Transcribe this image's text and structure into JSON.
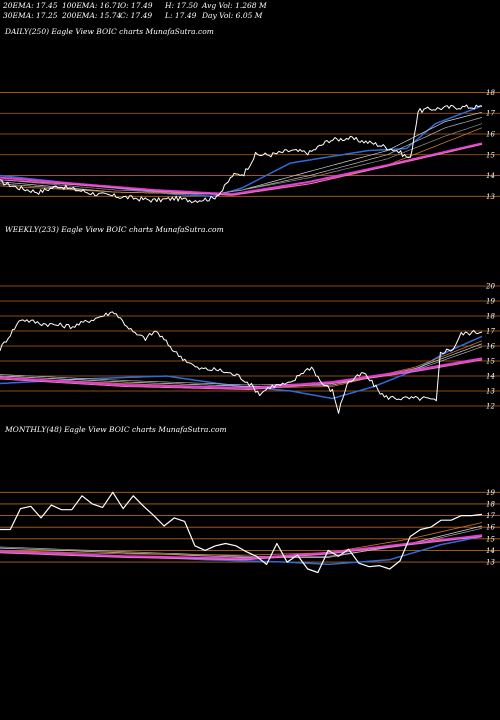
{
  "header": {
    "ema20": "20EMA: 17.45",
    "ema100": "100EMA: 16.71",
    "open": "O: 17.49",
    "high": "H: 17.50",
    "avgvol": "Avg Vol: 1.268  M",
    "ema30": "30EMA: 17.25",
    "ema200": "200EMA: 15.74",
    "close": "C: 17.49",
    "low": "L: 17.49",
    "dayvol": "Day Vol: 6.05 M"
  },
  "colors": {
    "background": "#000000",
    "price": "#ffffff",
    "gridline": "#b8651b",
    "ema_blue": "#2f6bd8",
    "ema_magenta": "#e040d0",
    "ema_pink": "#f070c8",
    "ema_orange": "#c8762a",
    "ema_white_gray": "#c8c8c8"
  },
  "chart_data": [
    {
      "type": "line",
      "label": "DAILY(250) Eagle  View  BOIC charts MunafaSutra.com",
      "y_ticks": [
        13,
        14,
        15,
        16,
        17,
        18
      ],
      "ylim": [
        12.1,
        18.6
      ],
      "x_count": 250,
      "grid": "horizontal",
      "series": [
        {
          "name": "price",
          "color": "#ffffff",
          "width": 1,
          "anchors": [
            [
              0,
              13.7
            ],
            [
              10,
              13.4
            ],
            [
              20,
              13.2
            ],
            [
              30,
              13.5
            ],
            [
              40,
              13.3
            ],
            [
              50,
              13.1
            ],
            [
              60,
              13.0
            ],
            [
              70,
              12.9
            ],
            [
              80,
              12.8
            ],
            [
              90,
              12.9
            ],
            [
              100,
              12.8
            ],
            [
              110,
              12.9
            ],
            [
              115,
              13.3
            ],
            [
              120,
              14.0
            ],
            [
              126,
              14.1
            ],
            [
              132,
              15.0
            ],
            [
              140,
              15.0
            ],
            [
              150,
              15.2
            ],
            [
              160,
              15.1
            ],
            [
              170,
              15.7
            ],
            [
              180,
              15.8
            ],
            [
              195,
              15.5
            ],
            [
              205,
              15.2
            ],
            [
              212,
              14.8
            ],
            [
              216,
              17.1
            ],
            [
              222,
              17.2
            ],
            [
              235,
              17.3
            ],
            [
              249,
              17.3
            ]
          ]
        },
        {
          "name": "ema-blue",
          "color": "#2f6bd8",
          "width": 1.5,
          "anchors": [
            [
              0,
              14.0
            ],
            [
              40,
              13.6
            ],
            [
              90,
              13.1
            ],
            [
              110,
              13.0
            ],
            [
              125,
              13.4
            ],
            [
              150,
              14.6
            ],
            [
              190,
              15.2
            ],
            [
              210,
              15.3
            ],
            [
              225,
              16.5
            ],
            [
              249,
              17.35
            ]
          ]
        },
        {
          "name": "ema-white-1",
          "color": "#d0d0d0",
          "width": 0.7,
          "anchors": [
            [
              0,
              13.7
            ],
            [
              60,
              13.2
            ],
            [
              110,
              13.1
            ],
            [
              125,
              13.3
            ],
            [
              160,
              14.2
            ],
            [
              200,
              15.2
            ],
            [
              230,
              16.6
            ],
            [
              249,
              17.05
            ]
          ]
        },
        {
          "name": "ema-white-2",
          "color": "#b8b8b8",
          "width": 0.7,
          "anchors": [
            [
              0,
              13.6
            ],
            [
              60,
              13.2
            ],
            [
              110,
              13.1
            ],
            [
              125,
              13.3
            ],
            [
              160,
              14.0
            ],
            [
              200,
              15.0
            ],
            [
              230,
              16.3
            ],
            [
              249,
              16.8
            ]
          ]
        },
        {
          "name": "ema-gray",
          "color": "#909090",
          "width": 0.7,
          "anchors": [
            [
              0,
              13.8
            ],
            [
              60,
              13.3
            ],
            [
              110,
              13.1
            ],
            [
              125,
              13.3
            ],
            [
              160,
              13.9
            ],
            [
              200,
              14.8
            ],
            [
              230,
              15.9
            ],
            [
              249,
              16.5
            ]
          ]
        },
        {
          "name": "ema-orange",
          "color": "#c8762a",
          "width": 0.8,
          "anchors": [
            [
              0,
              13.5
            ],
            [
              60,
              13.2
            ],
            [
              120,
              13.1
            ],
            [
              160,
              13.6
            ],
            [
              200,
              14.5
            ],
            [
              230,
              15.6
            ],
            [
              249,
              16.3
            ]
          ]
        },
        {
          "name": "ema-magenta",
          "color": "#e040d0",
          "width": 2,
          "anchors": [
            [
              0,
              13.9
            ],
            [
              40,
              13.6
            ],
            [
              80,
              13.3
            ],
            [
              120,
              13.1
            ],
            [
              160,
              13.7
            ],
            [
              200,
              14.5
            ],
            [
              249,
              15.55
            ]
          ]
        },
        {
          "name": "ema-pink",
          "color": "#f070c8",
          "width": 1,
          "anchors": [
            [
              0,
              13.8
            ],
            [
              40,
              13.55
            ],
            [
              80,
              13.25
            ],
            [
              120,
              13.05
            ],
            [
              160,
              13.6
            ],
            [
              200,
              14.45
            ],
            [
              249,
              15.5
            ]
          ]
        }
      ]
    },
    {
      "type": "line",
      "label": "WEEKLY(233) Eagle  View  BOIC charts MunafaSutra.com",
      "y_ticks": [
        12,
        13,
        14,
        15,
        16,
        17,
        18,
        19,
        20
      ],
      "ylim": [
        11.4,
        20.4
      ],
      "x_count": 233,
      "grid": "horizontal",
      "series": [
        {
          "name": "price",
          "color": "#ffffff",
          "width": 1,
          "anchors": [
            [
              0,
              15.8
            ],
            [
              10,
              17.8
            ],
            [
              20,
              17.5
            ],
            [
              35,
              17.3
            ],
            [
              45,
              17.8
            ],
            [
              55,
              18.3
            ],
            [
              60,
              17.5
            ],
            [
              65,
              16.8
            ],
            [
              70,
              16.5
            ],
            [
              75,
              17.0
            ],
            [
              85,
              15.5
            ],
            [
              95,
              14.5
            ],
            [
              105,
              14.4
            ],
            [
              115,
              14.0
            ],
            [
              120,
              13.5
            ],
            [
              125,
              12.8
            ],
            [
              130,
              13.3
            ],
            [
              140,
              13.5
            ],
            [
              145,
              14.2
            ],
            [
              150,
              14.6
            ],
            [
              155,
              13.5
            ],
            [
              160,
              13.0
            ],
            [
              163,
              11.6
            ],
            [
              167,
              13.5
            ],
            [
              175,
              14.2
            ],
            [
              185,
              12.6
            ],
            [
              195,
              12.5
            ],
            [
              205,
              12.5
            ],
            [
              210,
              12.3
            ],
            [
              212,
              15.6
            ],
            [
              218,
              15.8
            ],
            [
              222,
              16.8
            ],
            [
              233,
              17.0
            ]
          ]
        },
        {
          "name": "ema-blue",
          "color": "#2f6bd8",
          "width": 1.5,
          "anchors": [
            [
              0,
              13.5
            ],
            [
              40,
              13.8
            ],
            [
              80,
              14.0
            ],
            [
              110,
              13.4
            ],
            [
              140,
              13.0
            ],
            [
              160,
              12.5
            ],
            [
              180,
              13.3
            ],
            [
              200,
              14.4
            ],
            [
              215,
              15.6
            ],
            [
              233,
              16.7
            ]
          ]
        },
        {
          "name": "ema-white-1",
          "color": "#d0d0d0",
          "width": 0.7,
          "anchors": [
            [
              0,
              14.0
            ],
            [
              60,
              13.6
            ],
            [
              120,
              13.3
            ],
            [
              160,
              13.4
            ],
            [
              200,
              14.5
            ],
            [
              233,
              16.2
            ]
          ]
        },
        {
          "name": "ema-white-2",
          "color": "#b0b0b0",
          "width": 0.7,
          "anchors": [
            [
              0,
              14.1
            ],
            [
              60,
              13.7
            ],
            [
              120,
              13.4
            ],
            [
              160,
              13.5
            ],
            [
              200,
              14.4
            ],
            [
              233,
              16.0
            ]
          ]
        },
        {
          "name": "ema-orange",
          "color": "#c8762a",
          "width": 0.8,
          "anchors": [
            [
              0,
              13.9
            ],
            [
              60,
              13.5
            ],
            [
              120,
              13.2
            ],
            [
              160,
              13.3
            ],
            [
              200,
              14.6
            ],
            [
              233,
              16.4
            ]
          ]
        },
        {
          "name": "ema-magenta",
          "color": "#e040d0",
          "width": 2,
          "anchors": [
            [
              0,
              13.9
            ],
            [
              60,
              13.4
            ],
            [
              120,
              13.2
            ],
            [
              160,
              13.6
            ],
            [
              200,
              14.4
            ],
            [
              233,
              15.2
            ]
          ]
        },
        {
          "name": "ema-pink",
          "color": "#f070c8",
          "width": 1,
          "anchors": [
            [
              0,
              13.8
            ],
            [
              60,
              13.3
            ],
            [
              120,
              13.1
            ],
            [
              160,
              13.5
            ],
            [
              200,
              14.3
            ],
            [
              233,
              15.1
            ]
          ]
        }
      ]
    },
    {
      "type": "line",
      "label": "MONTHLY(48) Eagle  View  BOIC charts MunafaSutra.com",
      "y_ticks": [
        13,
        14,
        15,
        16,
        17,
        18,
        19
      ],
      "ylim": [
        11.2,
        19.8
      ],
      "x_count": 48,
      "grid": "horizontal",
      "series": [
        {
          "name": "price",
          "color": "#ffffff",
          "width": 1.2,
          "points": [
            15.8,
            15.8,
            17.6,
            17.8,
            16.8,
            17.9,
            17.5,
            17.5,
            18.7,
            18.0,
            17.7,
            19.0,
            17.6,
            18.7,
            17.8,
            17.0,
            16.1,
            16.8,
            16.5,
            14.4,
            14.0,
            14.4,
            14.6,
            14.4,
            13.9,
            13.5,
            12.8,
            14.6,
            13.0,
            13.6,
            12.4,
            12.1,
            14.0,
            13.5,
            14.1,
            12.9,
            12.6,
            12.7,
            12.4,
            13.1,
            15.2,
            15.8,
            16.0,
            16.6,
            16.6,
            17.0,
            17.0,
            17.1
          ]
        },
        {
          "name": "ema-blue",
          "color": "#2f6bd8",
          "width": 1.5,
          "anchors": [
            [
              0,
              14.0
            ],
            [
              10,
              13.6
            ],
            [
              20,
              13.2
            ],
            [
              28,
              13.0
            ],
            [
              32,
              12.8
            ],
            [
              38,
              13.2
            ],
            [
              43,
              14.5
            ],
            [
              47,
              15.2
            ]
          ]
        },
        {
          "name": "ema-white-1",
          "color": "#d0d0d0",
          "width": 0.7,
          "anchors": [
            [
              0,
              14.2
            ],
            [
              12,
              13.8
            ],
            [
              24,
              13.4
            ],
            [
              32,
              13.4
            ],
            [
              40,
              14.6
            ],
            [
              47,
              16.1
            ]
          ]
        },
        {
          "name": "ema-white-2",
          "color": "#b0b0b0",
          "width": 0.7,
          "anchors": [
            [
              0,
              14.3
            ],
            [
              12,
              13.9
            ],
            [
              24,
              13.5
            ],
            [
              32,
              13.5
            ],
            [
              40,
              14.5
            ],
            [
              47,
              15.9
            ]
          ]
        },
        {
          "name": "ema-orange",
          "color": "#c8762a",
          "width": 0.8,
          "anchors": [
            [
              0,
              14.0
            ],
            [
              12,
              13.7
            ],
            [
              24,
              13.6
            ],
            [
              32,
              13.8
            ],
            [
              40,
              15.0
            ],
            [
              47,
              16.4
            ]
          ]
        },
        {
          "name": "ema-magenta",
          "color": "#e040d0",
          "width": 2,
          "anchors": [
            [
              0,
              13.9
            ],
            [
              12,
              13.5
            ],
            [
              24,
              13.3
            ],
            [
              32,
              13.8
            ],
            [
              40,
              14.6
            ],
            [
              47,
              15.3
            ]
          ]
        },
        {
          "name": "ema-pink",
          "color": "#f070c8",
          "width": 1,
          "anchors": [
            [
              0,
              13.8
            ],
            [
              12,
              13.4
            ],
            [
              24,
              13.2
            ],
            [
              32,
              13.7
            ],
            [
              40,
              14.5
            ],
            [
              47,
              15.2
            ]
          ]
        }
      ]
    }
  ]
}
